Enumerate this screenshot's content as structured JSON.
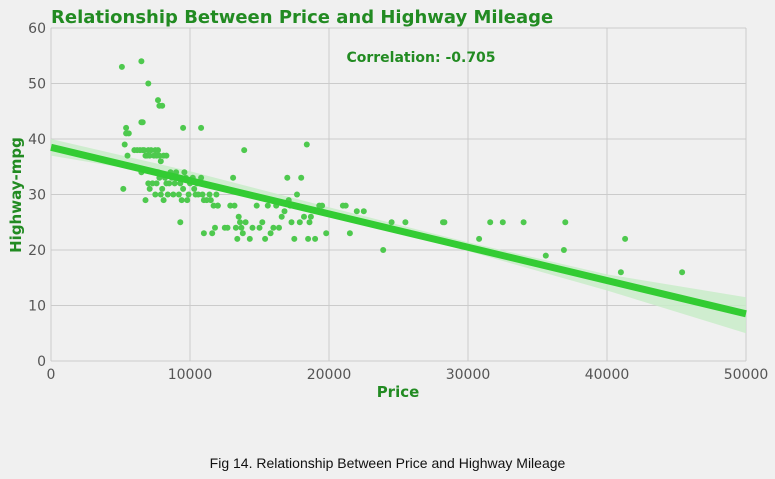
{
  "chart_data": {
    "type": "scatter",
    "title": "Relationship Between Price and Highway Mileage",
    "xlabel": "Price",
    "ylabel": "Highway-mpg",
    "xlim": [
      0,
      50000
    ],
    "ylim": [
      0,
      60
    ],
    "xticks": [
      0,
      10000,
      20000,
      30000,
      40000,
      50000
    ],
    "yticks": [
      0,
      10,
      20,
      30,
      40,
      50,
      60
    ],
    "grid": true,
    "annotation": "Correlation: -0.705",
    "colors": {
      "accent": "#228b22",
      "points": "#4ec94e",
      "line": "#33cc33",
      "band": "#c9ecc9"
    },
    "regression": {
      "intercept": 38.5,
      "slope": -0.0006
    },
    "confidence_band": {
      "x": [
        0,
        10000,
        20000,
        30000,
        40000,
        50000
      ],
      "lower": [
        37.0,
        32.8,
        26.3,
        19.8,
        12.7,
        5.0
      ],
      "upper": [
        40.0,
        34.2,
        27.7,
        21.4,
        15.6,
        11.5
      ]
    },
    "points": [
      [
        5100,
        53
      ],
      [
        6500,
        54
      ],
      [
        7000,
        50
      ],
      [
        7700,
        47
      ],
      [
        7800,
        46
      ],
      [
        8000,
        46
      ],
      [
        5200,
        31
      ],
      [
        5300,
        39
      ],
      [
        5400,
        42
      ],
      [
        5400,
        41
      ],
      [
        5500,
        37
      ],
      [
        5600,
        41
      ],
      [
        6000,
        38
      ],
      [
        6200,
        38
      ],
      [
        6400,
        38
      ],
      [
        6500,
        43
      ],
      [
        6600,
        43
      ],
      [
        6600,
        38
      ],
      [
        6700,
        38
      ],
      [
        6800,
        37
      ],
      [
        6900,
        37
      ],
      [
        7000,
        38
      ],
      [
        7100,
        37
      ],
      [
        7200,
        38
      ],
      [
        7400,
        37
      ],
      [
        7500,
        38
      ],
      [
        7600,
        37
      ],
      [
        7700,
        38
      ],
      [
        7800,
        37
      ],
      [
        7900,
        36
      ],
      [
        8100,
        37
      ],
      [
        8300,
        37
      ],
      [
        6500,
        34
      ],
      [
        6800,
        29
      ],
      [
        7000,
        32
      ],
      [
        7100,
        31
      ],
      [
        7300,
        32
      ],
      [
        7500,
        30
      ],
      [
        7600,
        32
      ],
      [
        7700,
        34
      ],
      [
        7800,
        33
      ],
      [
        7900,
        30
      ],
      [
        8000,
        31
      ],
      [
        8100,
        29
      ],
      [
        8200,
        33
      ],
      [
        8300,
        32
      ],
      [
        8400,
        30
      ],
      [
        8500,
        32
      ],
      [
        8600,
        34
      ],
      [
        8700,
        33
      ],
      [
        8800,
        30
      ],
      [
        8900,
        32
      ],
      [
        9000,
        34
      ],
      [
        9100,
        33
      ],
      [
        9200,
        30
      ],
      [
        9300,
        32
      ],
      [
        9400,
        29
      ],
      [
        9500,
        31
      ],
      [
        9600,
        34
      ],
      [
        9700,
        33
      ],
      [
        9800,
        29
      ],
      [
        9900,
        30
      ],
      [
        10000,
        32
      ],
      [
        10200,
        33
      ],
      [
        10300,
        31
      ],
      [
        10400,
        30
      ],
      [
        10500,
        32
      ],
      [
        10600,
        30
      ],
      [
        10800,
        33
      ],
      [
        10900,
        30
      ],
      [
        11000,
        29
      ],
      [
        11200,
        29
      ],
      [
        11400,
        30
      ],
      [
        11500,
        29
      ],
      [
        11700,
        28
      ],
      [
        11900,
        30
      ],
      [
        12000,
        28
      ],
      [
        9300,
        25
      ],
      [
        9500,
        42
      ],
      [
        10800,
        42
      ],
      [
        11000,
        23
      ],
      [
        11600,
        23
      ],
      [
        11800,
        24
      ],
      [
        12000,
        28
      ],
      [
        12500,
        24
      ],
      [
        12700,
        24
      ],
      [
        12900,
        28
      ],
      [
        13100,
        33
      ],
      [
        13200,
        28
      ],
      [
        13300,
        24
      ],
      [
        13400,
        22
      ],
      [
        13500,
        26
      ],
      [
        13600,
        25
      ],
      [
        13700,
        24
      ],
      [
        13800,
        23
      ],
      [
        13900,
        38
      ],
      [
        14000,
        25
      ],
      [
        14300,
        22
      ],
      [
        14500,
        24
      ],
      [
        14800,
        28
      ],
      [
        15000,
        24
      ],
      [
        15200,
        25
      ],
      [
        15400,
        22
      ],
      [
        15600,
        28
      ],
      [
        15800,
        23
      ],
      [
        16000,
        24
      ],
      [
        16200,
        28
      ],
      [
        16400,
        24
      ],
      [
        16600,
        26
      ],
      [
        16800,
        27
      ],
      [
        17000,
        33
      ],
      [
        17100,
        29
      ],
      [
        17200,
        28
      ],
      [
        17300,
        25
      ],
      [
        17500,
        22
      ],
      [
        17700,
        30
      ],
      [
        17900,
        25
      ],
      [
        18000,
        33
      ],
      [
        18200,
        26
      ],
      [
        18400,
        39
      ],
      [
        18500,
        22
      ],
      [
        18600,
        25
      ],
      [
        18700,
        26
      ],
      [
        19000,
        22
      ],
      [
        19300,
        28
      ],
      [
        19500,
        28
      ],
      [
        19800,
        23
      ],
      [
        21000,
        28
      ],
      [
        21200,
        28
      ],
      [
        21500,
        23
      ],
      [
        22000,
        27
      ],
      [
        22500,
        27
      ],
      [
        23900,
        20
      ],
      [
        24500,
        25
      ],
      [
        25500,
        25
      ],
      [
        28200,
        25
      ],
      [
        28300,
        25
      ],
      [
        30800,
        22
      ],
      [
        31600,
        25
      ],
      [
        32500,
        25
      ],
      [
        34000,
        25
      ],
      [
        35600,
        19
      ],
      [
        36900,
        20
      ],
      [
        37000,
        25
      ],
      [
        41000,
        16
      ],
      [
        41300,
        22
      ],
      [
        45400,
        16
      ]
    ]
  },
  "caption": "Fig 14. Relationship Between Price and Highway Mileage"
}
